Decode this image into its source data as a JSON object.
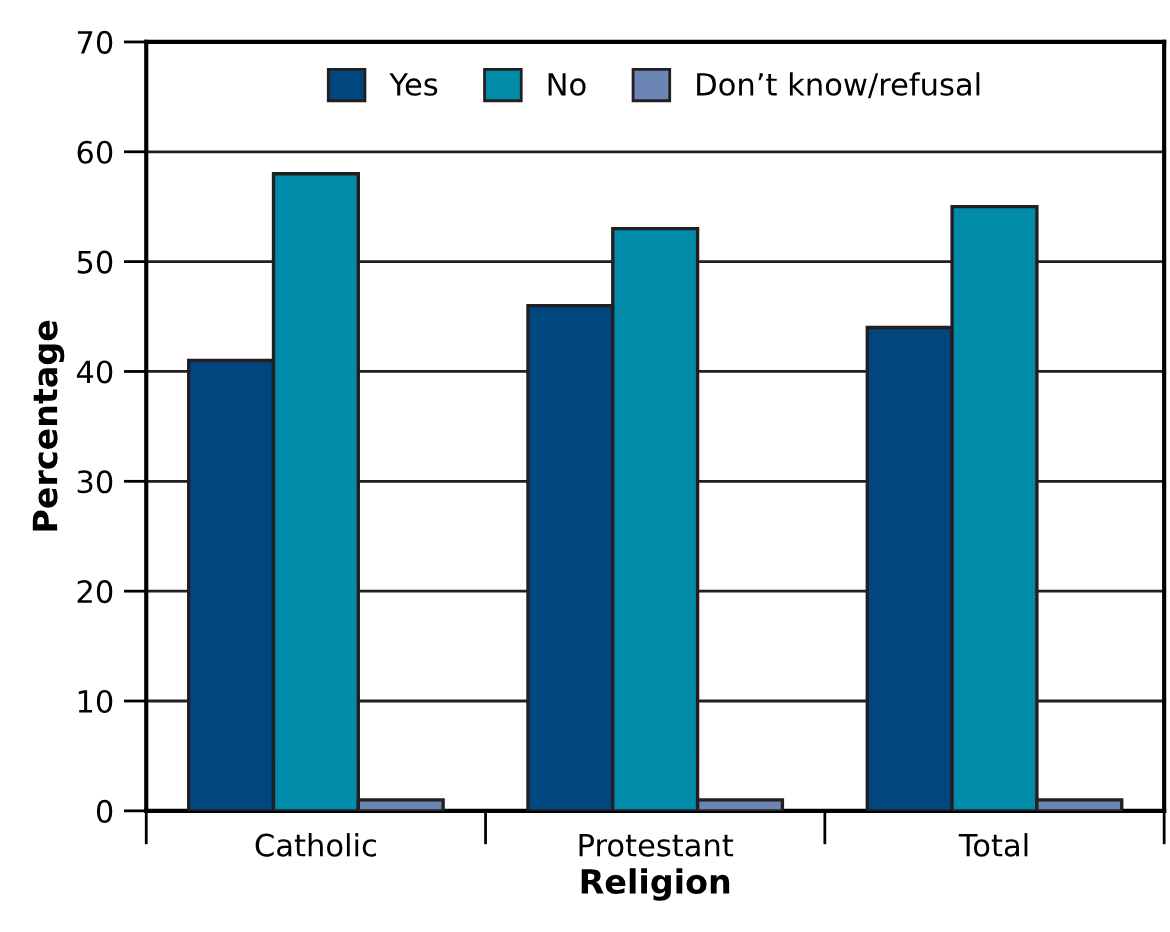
{
  "chart_data": {
    "type": "bar",
    "xlabel": "Religion",
    "ylabel": "Percentage",
    "categories": [
      "Catholic",
      "Protestant",
      "Total"
    ],
    "series": [
      {
        "name": "Yes",
        "color": "#00467f",
        "values": [
          41,
          46,
          44
        ]
      },
      {
        "name": "No",
        "color": "#008ba9",
        "values": [
          58,
          53,
          55
        ]
      },
      {
        "name": "Don’t know/refusal",
        "color": "#6b86b4",
        "values": [
          1,
          1,
          1
        ]
      }
    ],
    "ylim": [
      0,
      70
    ],
    "yticks": [
      0,
      10,
      20,
      30,
      40,
      50,
      60,
      70
    ],
    "grid": "y",
    "legend": "top"
  }
}
